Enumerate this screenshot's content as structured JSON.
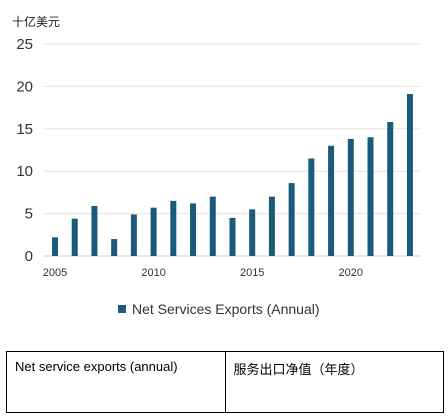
{
  "chart_data": {
    "type": "bar",
    "unit_label": "十亿美元",
    "x": [
      2005,
      2006,
      2007,
      2008,
      2009,
      2010,
      2011,
      2012,
      2013,
      2014,
      2015,
      2016,
      2017,
      2018,
      2019,
      2020,
      2021,
      2022,
      2023
    ],
    "values": [
      2.2,
      4.4,
      5.9,
      2.0,
      4.9,
      5.7,
      6.5,
      6.2,
      7.0,
      4.5,
      5.5,
      7.0,
      8.6,
      11.5,
      13.0,
      13.8,
      14.0,
      15.8,
      19.1
    ],
    "yticks": [
      0,
      5,
      10,
      15,
      20,
      25
    ],
    "xticks": [
      2005,
      2010,
      2015,
      2020
    ],
    "ylim": [
      0,
      25
    ],
    "grid": "horizontal",
    "legend_position": "bottom",
    "series": [
      {
        "name": "Net Services Exports (Annual)",
        "color": "#1b5a7a"
      }
    ]
  },
  "table": {
    "english": "Net service exports (annual)",
    "chinese": "服务出口净值（年度）"
  }
}
